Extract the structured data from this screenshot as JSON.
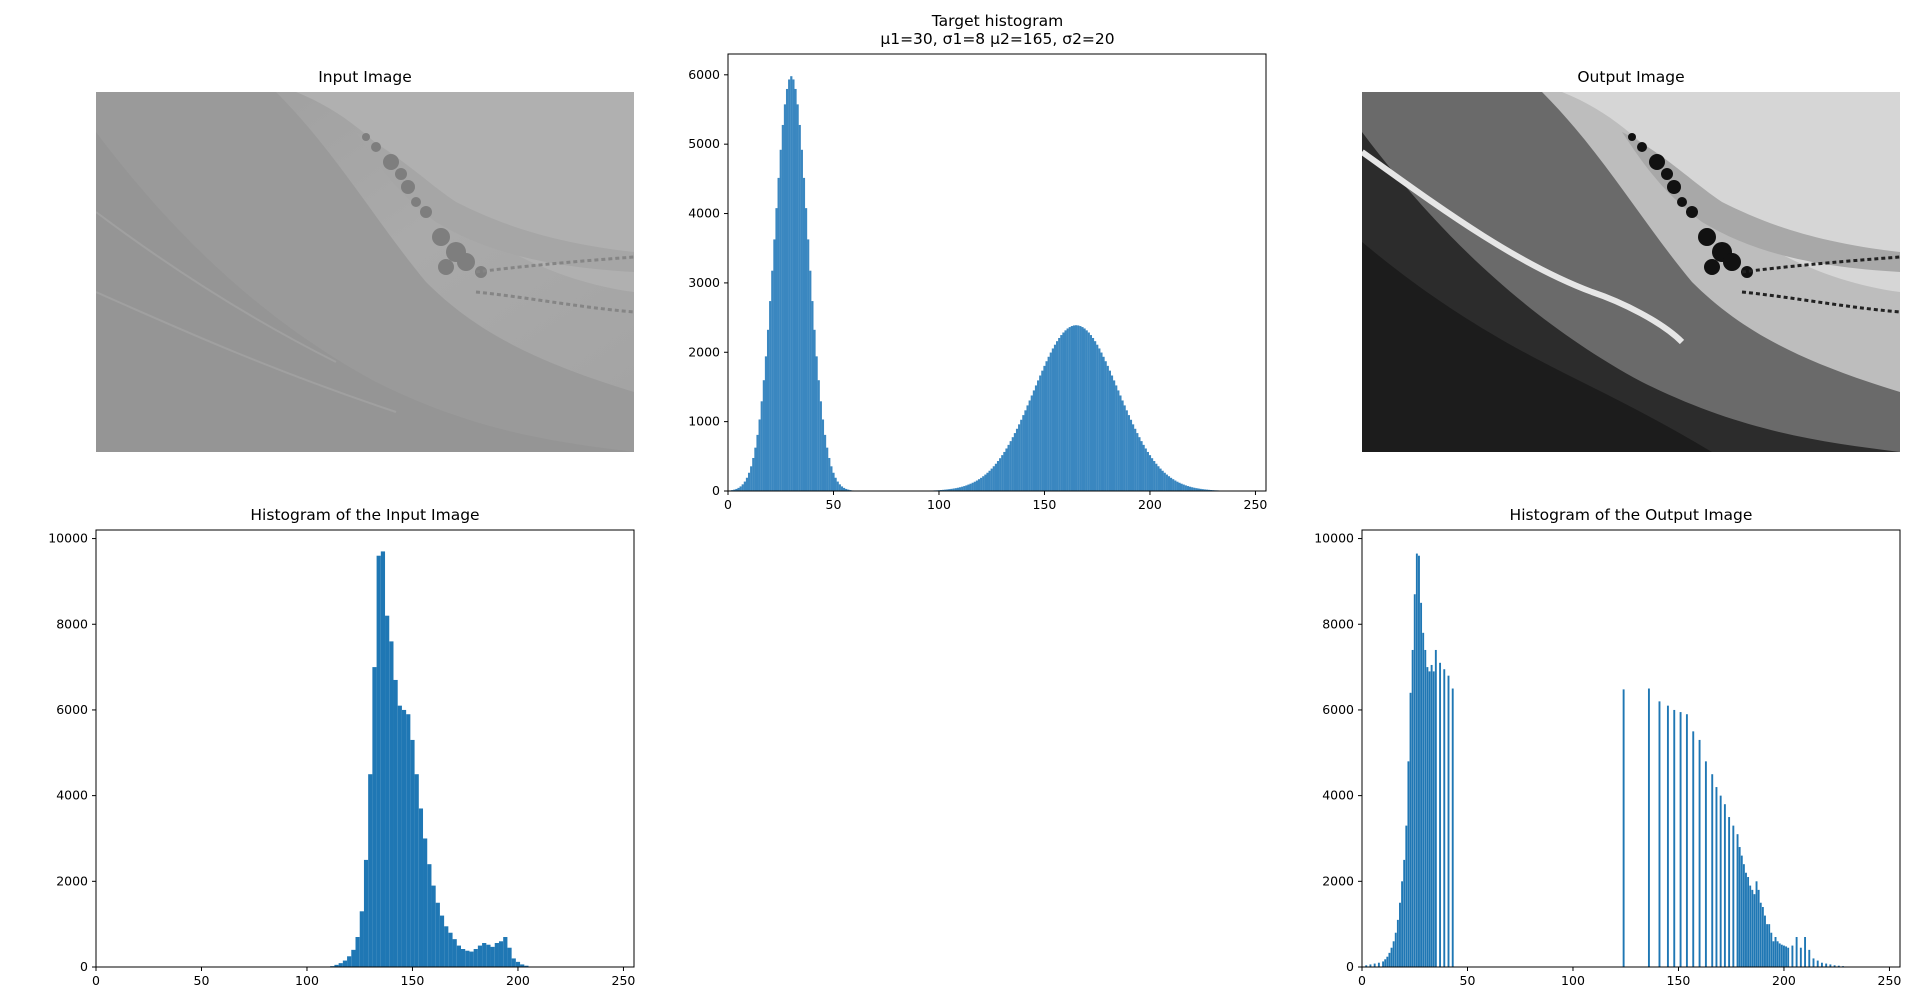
{
  "panels": {
    "input_image": {
      "title": "Input Image"
    },
    "output_image": {
      "title": "Output Image"
    }
  },
  "colors": {
    "bar": "#1f77b4",
    "bar_target": "#3a87c0"
  },
  "chart_data": [
    {
      "id": "target",
      "type": "bar",
      "title": "Target histogram",
      "subtitle": "μ1=30, σ1=8   μ2=165, σ2=20",
      "xlim": [
        0,
        255
      ],
      "ylim": [
        0,
        6300
      ],
      "xticks": [
        0,
        50,
        100,
        150,
        200,
        250
      ],
      "yticks": [
        0,
        1000,
        2000,
        3000,
        4000,
        5000,
        6000
      ],
      "components": [
        {
          "mu": 30,
          "sigma": 8,
          "peak": 5980
        },
        {
          "mu": 165,
          "sigma": 20,
          "peak": 2390
        }
      ]
    },
    {
      "id": "hist_input",
      "type": "bar",
      "title": "Histogram of the Input Image",
      "xlim": [
        0,
        255
      ],
      "ylim": [
        0,
        10200
      ],
      "xticks": [
        0,
        50,
        100,
        150,
        200,
        250
      ],
      "yticks": [
        0,
        2000,
        4000,
        6000,
        8000,
        10000
      ],
      "x": [
        112,
        114,
        116,
        118,
        120,
        122,
        124,
        126,
        128,
        130,
        132,
        134,
        136,
        138,
        140,
        142,
        144,
        146,
        148,
        150,
        152,
        154,
        156,
        158,
        160,
        162,
        164,
        166,
        168,
        170,
        172,
        174,
        176,
        178,
        180,
        182,
        184,
        186,
        188,
        190,
        192,
        194,
        196,
        198,
        200,
        202,
        204,
        206
      ],
      "values": [
        20,
        50,
        90,
        150,
        250,
        400,
        700,
        1300,
        2500,
        4500,
        7000,
        9600,
        9700,
        8200,
        7600,
        6700,
        6100,
        6000,
        5900,
        5300,
        4500,
        3700,
        3000,
        2400,
        1900,
        1500,
        1200,
        950,
        800,
        650,
        500,
        420,
        380,
        360,
        420,
        500,
        560,
        520,
        470,
        560,
        600,
        700,
        450,
        200,
        120,
        60,
        30,
        10
      ]
    },
    {
      "id": "hist_output",
      "type": "bar",
      "title": "Histogram of the Output Image",
      "xlim": [
        0,
        255
      ],
      "ylim": [
        0,
        10200
      ],
      "xticks": [
        0,
        50,
        100,
        150,
        200,
        250
      ],
      "yticks": [
        0,
        2000,
        4000,
        6000,
        8000,
        10000
      ],
      "x": [
        2,
        4,
        6,
        8,
        10,
        11,
        12,
        13,
        14,
        15,
        16,
        17,
        18,
        19,
        20,
        21,
        22,
        23,
        24,
        25,
        26,
        27,
        28,
        29,
        30,
        31,
        32,
        33,
        34,
        35,
        37,
        39,
        41,
        43,
        124,
        136,
        141,
        145,
        148,
        151,
        154,
        157,
        160,
        163,
        166,
        168,
        170,
        172,
        174,
        176,
        178,
        179,
        180,
        181,
        182,
        183,
        184,
        185,
        186,
        187,
        188,
        189,
        190,
        191,
        192,
        193,
        194,
        195,
        196,
        197,
        198,
        199,
        200,
        201,
        202,
        204,
        206,
        208,
        210,
        212,
        214,
        216,
        218,
        220,
        222,
        224,
        226,
        228,
        230
      ],
      "values": [
        40,
        60,
        80,
        100,
        130,
        180,
        240,
        330,
        450,
        600,
        800,
        1100,
        1500,
        2000,
        2500,
        3300,
        4800,
        6400,
        7400,
        8700,
        9650,
        9600,
        8500,
        7800,
        7400,
        7000,
        6900,
        7050,
        6900,
        7400,
        7100,
        6950,
        6800,
        6500,
        6480,
        6500,
        6200,
        6100,
        6000,
        5950,
        5900,
        5500,
        5300,
        4800,
        4500,
        4200,
        4000,
        3800,
        3500,
        3300,
        3100,
        2800,
        2600,
        2400,
        2200,
        2100,
        1900,
        1800,
        1700,
        2000,
        1800,
        1500,
        1400,
        1200,
        1000,
        1000,
        800,
        600,
        700,
        600,
        550,
        520,
        500,
        480,
        450,
        500,
        700,
        450,
        700,
        400,
        200,
        150,
        100,
        80,
        60,
        40,
        30,
        20,
        10
      ]
    }
  ]
}
